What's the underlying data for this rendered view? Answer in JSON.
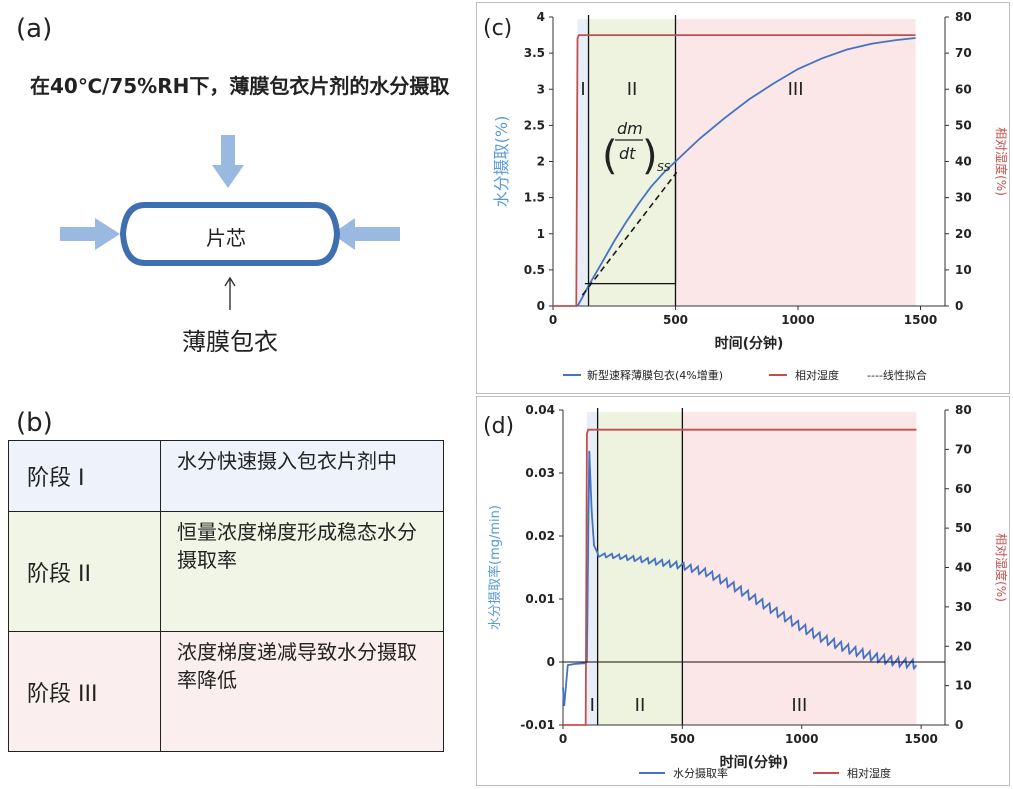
{
  "panel_a": {
    "letter": "(a)",
    "headline": "在40℃/75%RH下，薄膜包衣片剂的水分摄取",
    "core_label": "片芯",
    "coat_label": "薄膜包衣",
    "colors": {
      "arrow": "#9ab9e0",
      "tablet_border": "#3e6fb0"
    }
  },
  "panel_b": {
    "letter": "(b)",
    "stages": [
      {
        "name": "阶段 I",
        "desc": "水分快速摄入包衣片剂中"
      },
      {
        "name": "阶段 II",
        "desc": "恒量浓度梯度形成稳态水分摄取率"
      },
      {
        "name": "阶段 III",
        "desc": "浓度梯度递减导致水分摄取率降低"
      }
    ]
  },
  "chart_data": [
    {
      "panel": "(c)",
      "type": "line",
      "xlabel": "时间(分钟)",
      "ylabel": "水分摄取(%)",
      "y2label": "相对湿度(%)",
      "xlim": [
        0,
        1600
      ],
      "ylim": [
        0,
        4
      ],
      "y2lim": [
        0,
        80
      ],
      "xticks": [
        "0",
        "500",
        "1000",
        "1500"
      ],
      "yticks": [
        "0",
        "0.5",
        "1",
        "1.5",
        "2",
        "2.5",
        "3",
        "3.5",
        "4"
      ],
      "y2ticks": [
        "0",
        "10",
        "20",
        "30",
        "40",
        "50",
        "60",
        "70",
        "80"
      ],
      "stage_bounds": [
        0,
        100,
        145,
        500,
        1480
      ],
      "stage_labels": [
        "I",
        "II",
        "III"
      ],
      "annotation": "(dm/dt)ss",
      "series": [
        {
          "name": "新型速释薄膜包衣(4%增重)",
          "axis": "left",
          "color": "#4472c4",
          "x": [
            100,
            120,
            145,
            200,
            250,
            300,
            350,
            400,
            450,
            500,
            550,
            600,
            700,
            800,
            900,
            1000,
            1100,
            1200,
            1300,
            1400,
            1480
          ],
          "y": [
            0,
            0.12,
            0.28,
            0.6,
            0.9,
            1.17,
            1.42,
            1.65,
            1.84,
            2.0,
            2.16,
            2.32,
            2.6,
            2.86,
            3.08,
            3.28,
            3.43,
            3.55,
            3.63,
            3.68,
            3.71
          ]
        },
        {
          "name": "相对湿度",
          "axis": "right",
          "color": "#c0504d",
          "x": [
            0,
            95,
            100,
            105,
            1480
          ],
          "y": [
            0,
            0,
            74,
            75,
            75
          ]
        },
        {
          "name": "----线性拟合",
          "axis": "left",
          "color": "#1a1a1a",
          "dashed": true,
          "x": [
            120,
            505
          ],
          "y": [
            0.15,
            1.85
          ]
        }
      ]
    },
    {
      "panel": "(d)",
      "type": "line",
      "xlabel": "时间(分钟)",
      "ylabel": "水分摄取率(mg/min)",
      "y2label": "相对湿度(%)",
      "xlim": [
        0,
        1600
      ],
      "ylim": [
        -0.01,
        0.04
      ],
      "y2lim": [
        0,
        80
      ],
      "xticks": [
        "0",
        "500",
        "1000",
        "1500"
      ],
      "yticks": [
        "-0.01",
        "0",
        "0.01",
        "0.02",
        "0.03",
        "0.04"
      ],
      "y2ticks": [
        "0",
        "10",
        "20",
        "30",
        "40",
        "50",
        "60",
        "70",
        "80"
      ],
      "stage_bounds": [
        0,
        100,
        145,
        500,
        1480
      ],
      "stage_labels": [
        "I",
        "II",
        "III"
      ],
      "series": [
        {
          "name": "水分摄取率",
          "axis": "left",
          "color": "#4472c4",
          "x": [
            0,
            5,
            20,
            50,
            90,
            100,
            110,
            120,
            130,
            145,
            200,
            300,
            400,
            500,
            600,
            700,
            800,
            900,
            1000,
            1100,
            1200,
            1300,
            1400,
            1480
          ],
          "y": [
            -0.004,
            -0.007,
            -0.0005,
            -0.0003,
            -0.0002,
            0.0,
            0.0335,
            0.024,
            0.0185,
            0.0173,
            0.0172,
            0.0168,
            0.0163,
            0.0158,
            0.0148,
            0.013,
            0.0108,
            0.0085,
            0.0062,
            0.0042,
            0.0027,
            0.0015,
            0.0007,
            0.0003
          ],
          "wavy_from": 145,
          "wave_period": 30
        },
        {
          "name": "相对湿度",
          "axis": "right",
          "color": "#c0504d",
          "x": [
            0,
            95,
            100,
            105,
            1480
          ],
          "y": [
            0,
            0,
            74,
            75,
            75
          ]
        }
      ]
    }
  ],
  "colors": {
    "stage1": "#e8eef8",
    "stage2": "#eef3e0",
    "stage3": "#fbe6e8",
    "axis": "#333333"
  }
}
